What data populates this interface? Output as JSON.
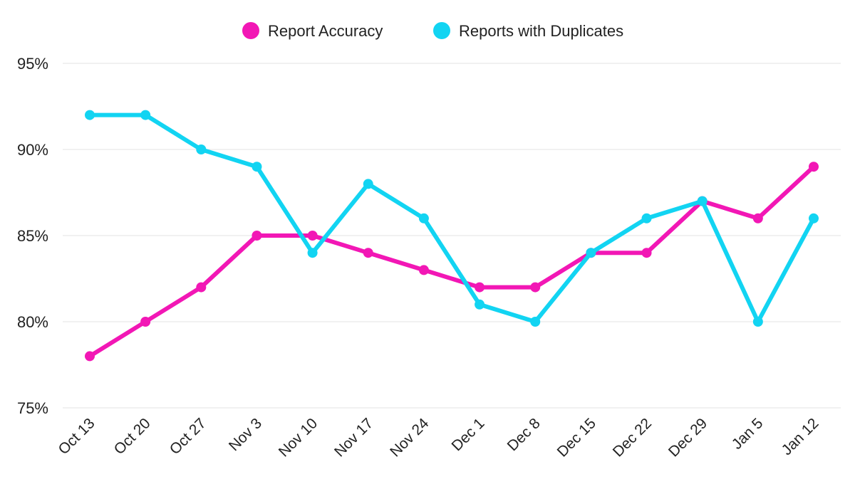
{
  "chart_data": {
    "type": "line",
    "title": "",
    "xlabel": "",
    "ylabel": "",
    "categories": [
      "Oct 13",
      "Oct 20",
      "Oct 27",
      "Nov 3",
      "Nov 10",
      "Nov 17",
      "Nov 24",
      "Dec 1",
      "Dec 8",
      "Dec 15",
      "Dec 22",
      "Dec 29",
      "Jan 5",
      "Jan 12"
    ],
    "ylim": [
      75,
      95
    ],
    "yticks": [
      75,
      80,
      85,
      90,
      95
    ],
    "ytick_labels": [
      "75%",
      "80%",
      "85%",
      "90%",
      "95%"
    ],
    "grid": true,
    "legend_position": "top-center",
    "series": [
      {
        "name": "Report Accuracy",
        "color": "#F217B5",
        "values": [
          78,
          80,
          82,
          85,
          85,
          84,
          83,
          82,
          82,
          84,
          84,
          87,
          86,
          89
        ]
      },
      {
        "name": "Reports with Duplicates",
        "color": "#12D4F2",
        "values": [
          92,
          92,
          90,
          89,
          84,
          88,
          86,
          81,
          80,
          84,
          86,
          87,
          80,
          86
        ]
      }
    ]
  }
}
